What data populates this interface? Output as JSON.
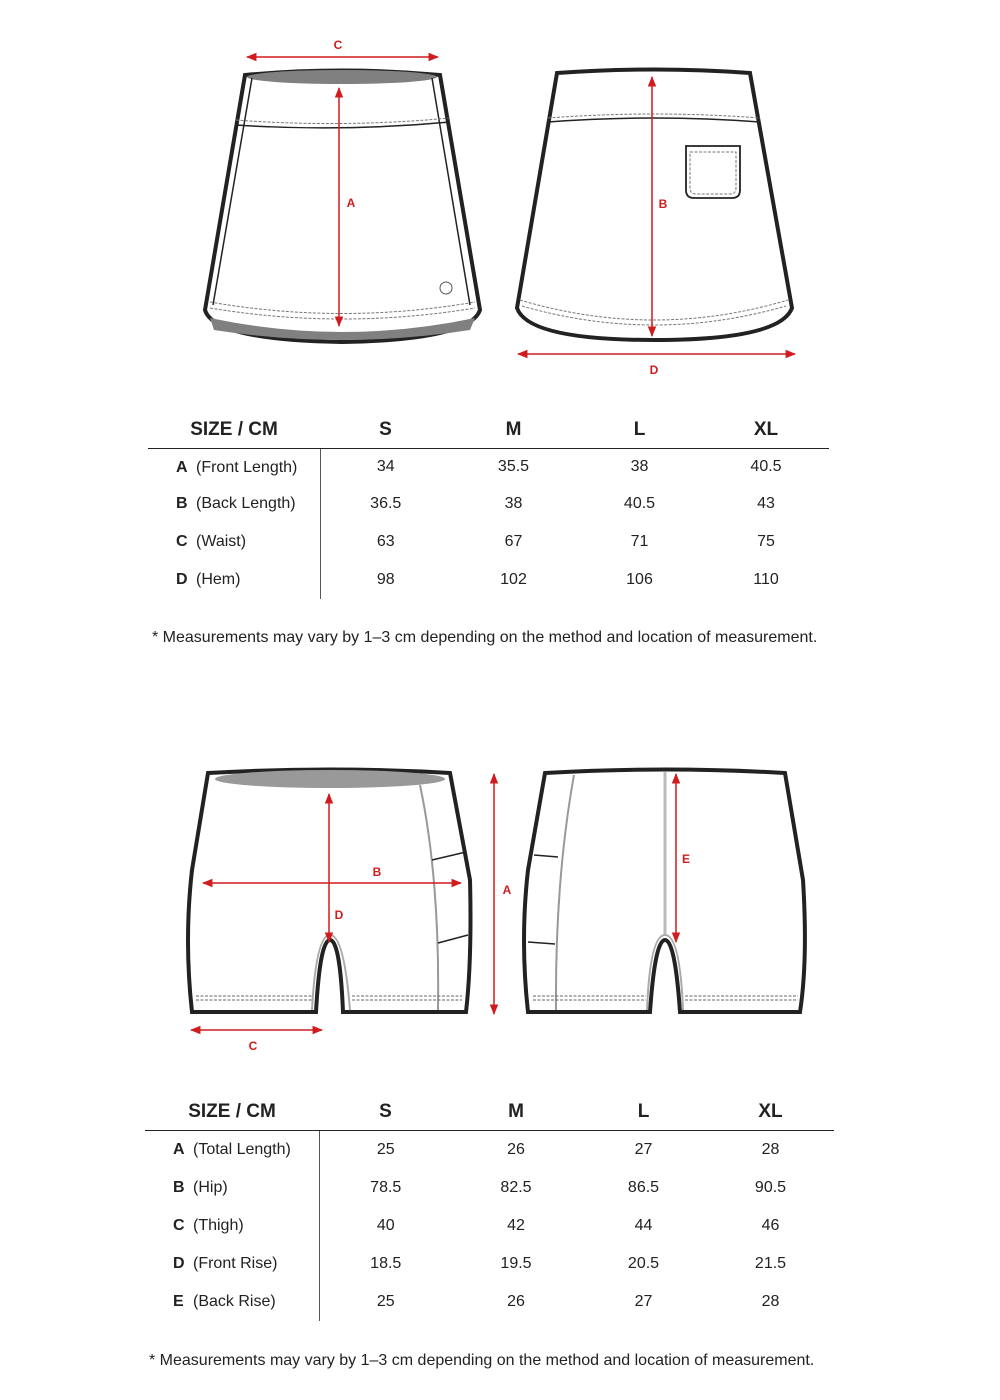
{
  "colors": {
    "dimension_line": "#d01c1f",
    "outline": "#222222",
    "inner_gray": "#8f8f8f"
  },
  "skirt": {
    "diagram_labels": {
      "a": "A",
      "b": "B",
      "c": "C",
      "d": "D"
    },
    "table": {
      "header": [
        "SIZE / CM",
        "S",
        "M",
        "L",
        "XL"
      ],
      "rows": [
        {
          "key": "A",
          "name": "(Front Length)",
          "values": [
            "34",
            "35.5",
            "38",
            "40.5"
          ]
        },
        {
          "key": "B",
          "name": "(Back Length)",
          "values": [
            "36.5",
            "38",
            "40.5",
            "43"
          ]
        },
        {
          "key": "C",
          "name": "(Waist)",
          "values": [
            "63",
            "67",
            "71",
            "75"
          ]
        },
        {
          "key": "D",
          "name": "(Hem)",
          "values": [
            "98",
            "102",
            "106",
            "110"
          ]
        }
      ]
    },
    "note": "* Measurements may vary by 1–3 cm depending on the method and location of measurement."
  },
  "shorts": {
    "diagram_labels": {
      "a": "A",
      "b": "B",
      "c": "C",
      "d": "D",
      "e": "E"
    },
    "table": {
      "header": [
        "SIZE / CM",
        "S",
        "M",
        "L",
        "XL"
      ],
      "rows": [
        {
          "key": "A",
          "name": "(Total Length)",
          "values": [
            "25",
            "26",
            "27",
            "28"
          ]
        },
        {
          "key": "B",
          "name": "(Hip)",
          "values": [
            "78.5",
            "82.5",
            "86.5",
            "90.5"
          ]
        },
        {
          "key": "C",
          "name": "(Thigh)",
          "values": [
            "40",
            "42",
            "44",
            "46"
          ]
        },
        {
          "key": "D",
          "name": "(Front Rise)",
          "values": [
            "18.5",
            "19.5",
            "20.5",
            "21.5"
          ]
        },
        {
          "key": "E",
          "name": "(Back Rise)",
          "values": [
            "25",
            "26",
            "27",
            "28"
          ]
        }
      ]
    },
    "note": "* Measurements may vary by 1–3 cm depending on the method and location of measurement."
  }
}
